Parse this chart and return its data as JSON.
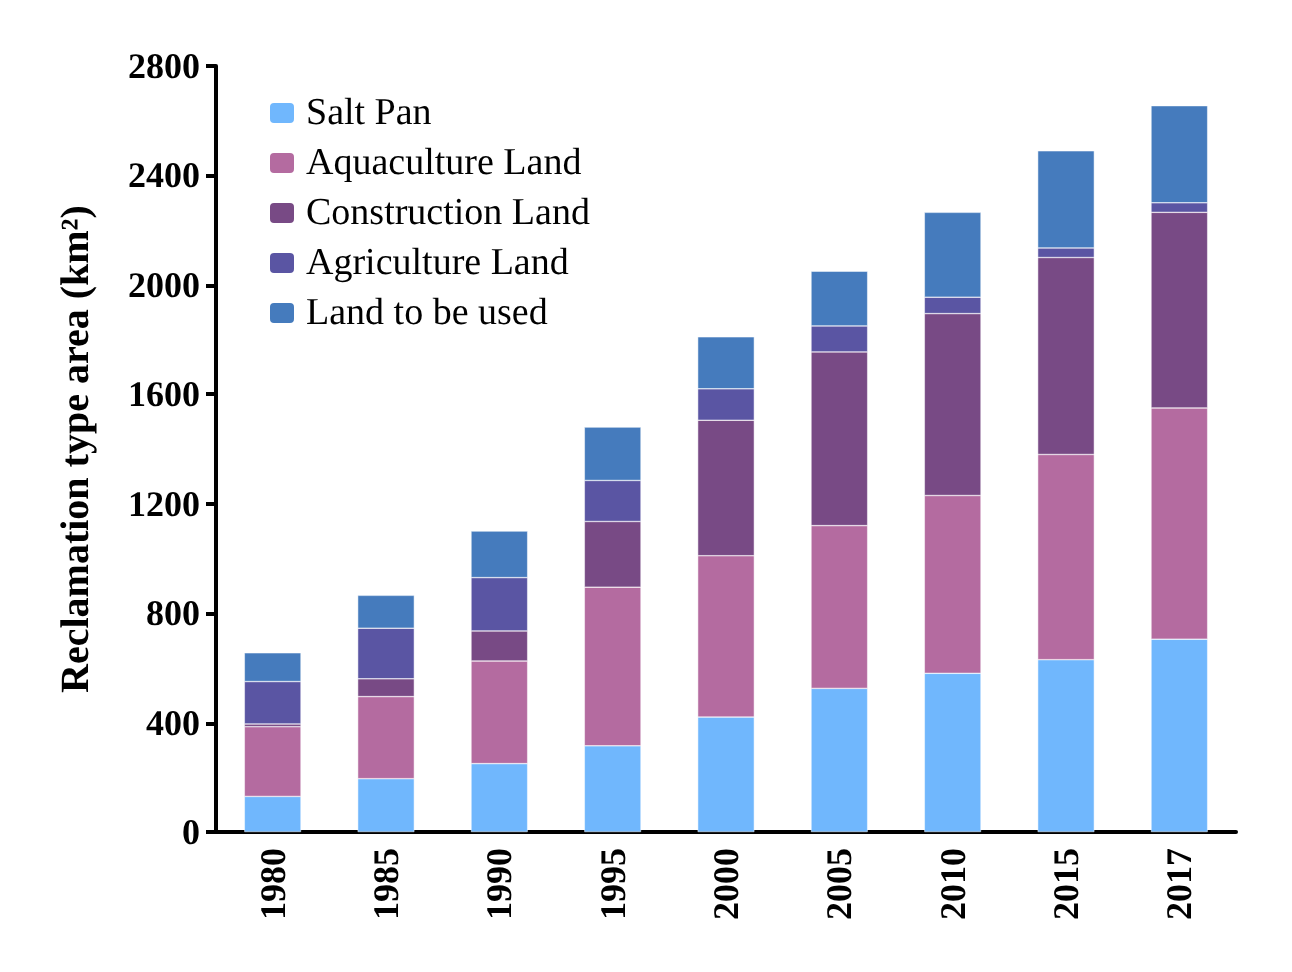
{
  "chart_data": {
    "type": "bar",
    "stacked": true,
    "ylabel": "Reclamation type area (km²)",
    "categories": [
      "1980",
      "1985",
      "1990",
      "1995",
      "2000",
      "2005",
      "2010",
      "2015",
      "2017"
    ],
    "series": [
      {
        "name": "Salt Pan",
        "color": "#70b7fd",
        "values": [
          130,
          195,
          250,
          315,
          420,
          525,
          580,
          630,
          705
        ]
      },
      {
        "name": "Aquaculture Land",
        "color": "#b46ba0",
        "values": [
          255,
          300,
          375,
          580,
          590,
          595,
          650,
          750,
          845
        ]
      },
      {
        "name": "Construction Land",
        "color": "#784a85",
        "values": [
          10,
          65,
          110,
          240,
          495,
          635,
          665,
          720,
          715
        ]
      },
      {
        "name": "Agriculture Land",
        "color": "#5a55a3",
        "values": [
          155,
          185,
          195,
          150,
          115,
          95,
          60,
          35,
          35
        ]
      },
      {
        "name": "Land to be used",
        "color": "#457bbd",
        "values": [
          105,
          120,
          170,
          195,
          190,
          200,
          310,
          355,
          355
        ]
      }
    ],
    "ylim": [
      0,
      2800
    ],
    "yticks": [
      0,
      400,
      800,
      1200,
      1600,
      2000,
      2400,
      2800
    ],
    "grid": false,
    "legend": "top left"
  }
}
